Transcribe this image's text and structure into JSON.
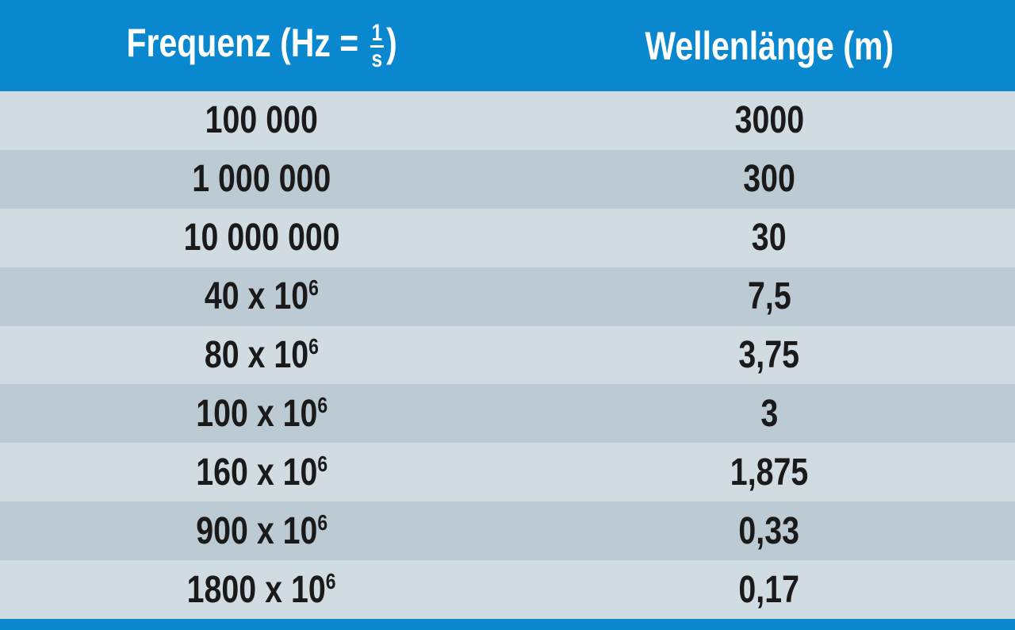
{
  "header": {
    "frequency_label": "Frequenz (Hz =",
    "frac_num": "1",
    "frac_den": "s",
    "frequency_close": ")",
    "wavelength_label": "Wellenlänge (m)"
  },
  "rows": [
    {
      "freq": "100 000",
      "exp": "",
      "wave": "3000"
    },
    {
      "freq": "1 000 000",
      "exp": "",
      "wave": "300"
    },
    {
      "freq": "10 000 000",
      "exp": "",
      "wave": "30"
    },
    {
      "freq": "40 x 10",
      "exp": "6",
      "wave": "7,5"
    },
    {
      "freq": "80 x 10",
      "exp": "6",
      "wave": "3,75"
    },
    {
      "freq": "100 x 10",
      "exp": "6",
      "wave": "3"
    },
    {
      "freq": "160 x 10",
      "exp": "6",
      "wave": "1,875"
    },
    {
      "freq": "900 x 10",
      "exp": "6",
      "wave": "0,33"
    },
    {
      "freq": "1800 x 10",
      "exp": "6",
      "wave": "0,17"
    }
  ],
  "colors": {
    "header": "#0a88cf",
    "row_light": "#d0dce1",
    "row_dark": "#bccbd3"
  }
}
